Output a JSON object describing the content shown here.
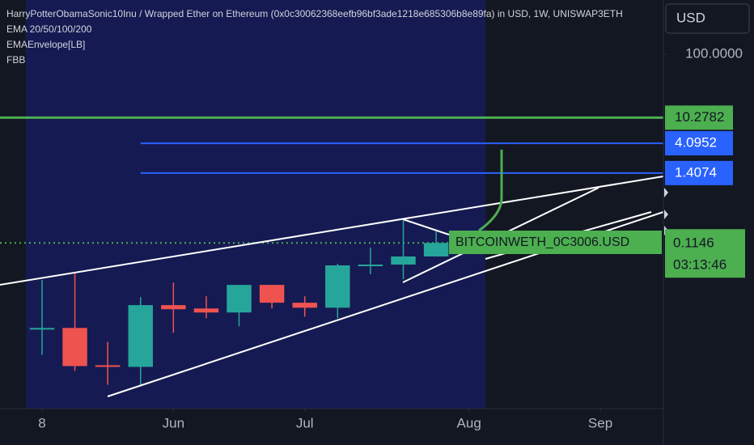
{
  "chart_data": {
    "type": "candlestick",
    "title": "HarryPotterObamaSonic10Inu / Wrapped Ether on Ethereum (0x0c30062368eefb96bf3ade1218e685306b8e89fa) in USD, 1W, UNISWAP3ETH",
    "indicators": [
      "EMA 20/50/100/200",
      "EMAEnvelope[LB]",
      "FBB"
    ],
    "currency": "USD",
    "log_scale": true,
    "x": [
      0,
      1,
      2,
      3,
      4,
      5,
      6,
      7,
      8,
      9,
      10,
      11,
      12
    ],
    "open": [
      0.00542,
      0.00542,
      0.00142,
      0.00134,
      0.0123,
      0.0109,
      0.00944,
      0.0254,
      0.0134,
      0.0112,
      0.0512,
      0.0527,
      0.0705
    ],
    "high": [
      0.0303,
      0.0394,
      0.0033,
      0.0164,
      0.0277,
      0.0169,
      0.0254,
      0.0254,
      0.0169,
      0.0542,
      0.097,
      0.254,
      0.174
    ],
    "low": [
      0.00207,
      0.00116,
      0.000705,
      0.000665,
      0.00455,
      0.00769,
      0.00574,
      0.0109,
      0.00815,
      0.00769,
      0.0372,
      0.0312,
      0.0705
    ],
    "close": [
      0.00542,
      0.00138,
      0.00134,
      0.0123,
      0.0106,
      0.00944,
      0.0254,
      0.0134,
      0.0112,
      0.0512,
      0.0527,
      0.0705,
      0.1146
    ],
    "up_color": "#26a69a",
    "down_color": "#ef5350",
    "xlim": [
      -1.28,
      18.92
    ],
    "xticks": [
      {
        "value": 0,
        "label": "8"
      },
      {
        "value": 4,
        "label": "Jun"
      },
      {
        "value": 8,
        "label": "Jul"
      },
      {
        "value": 13,
        "label": "Aug"
      },
      {
        "value": 17,
        "label": "Sep"
      }
    ],
    "ylim": [
      0.0003,
      700
    ],
    "yticks": [
      {
        "value": 100,
        "label": "100.0000"
      }
    ],
    "levels": [
      {
        "value": 10.2782,
        "color": "#4caf50"
      },
      {
        "value": 4.0952,
        "color": "#2962ff",
        "from": 3
      },
      {
        "value": 1.4074,
        "color": "#2962ff",
        "from": 3
      }
    ],
    "last_price": 0.1146,
    "last_color": "#4caf50",
    "countdown": "03:13:46",
    "annotation": "BITCOINWETH_0C3006.USD"
  }
}
